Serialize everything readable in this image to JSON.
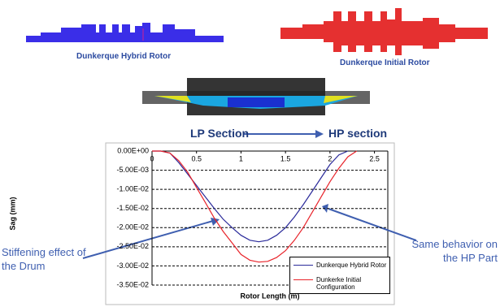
{
  "chart_data": {
    "type": "line",
    "x_label": "Rotor Length (m)",
    "y_label": "Sag (mm)",
    "x": [
      0,
      0.1,
      0.2,
      0.3,
      0.4,
      0.5,
      0.6,
      0.7,
      0.8,
      0.9,
      1.0,
      1.1,
      1.2,
      1.3,
      1.4,
      1.5,
      1.6,
      1.7,
      1.8,
      1.9,
      2.0,
      2.1,
      2.2,
      2.3
    ],
    "series": [
      {
        "name": "Dunkerque Hybrid Rotor",
        "color": "#2a2a9a",
        "values": [
          0,
          0,
          -0.0005,
          -0.003,
          -0.006,
          -0.009,
          -0.012,
          -0.015,
          -0.0178,
          -0.02,
          -0.022,
          -0.0233,
          -0.0237,
          -0.0233,
          -0.022,
          -0.02,
          -0.0172,
          -0.014,
          -0.0105,
          -0.007,
          -0.0035,
          -0.001,
          0,
          null
        ]
      },
      {
        "name": "Dunkerke Initial Configuration",
        "color": "#e8232a",
        "values": [
          0,
          0,
          -0.0005,
          -0.0025,
          -0.0055,
          -0.0095,
          -0.0135,
          -0.0175,
          -0.021,
          -0.024,
          -0.027,
          -0.0285,
          -0.029,
          -0.0288,
          -0.0278,
          -0.026,
          -0.0233,
          -0.02,
          -0.016,
          -0.012,
          -0.008,
          -0.0045,
          -0.0015,
          0
        ]
      }
    ],
    "xlim": [
      0,
      2.65
    ],
    "xticks": [
      0,
      0.5,
      1,
      1.5,
      2,
      2.5
    ],
    "ylim": [
      -0.035,
      0
    ],
    "yticks": [
      {
        "value": 0,
        "label": "0.00E+00"
      },
      {
        "value": -0.005,
        "label": "-5.00E-03"
      },
      {
        "value": -0.01,
        "label": "-1.00E-02"
      },
      {
        "value": -0.015,
        "label": "-1.50E-02"
      },
      {
        "value": -0.02,
        "label": "-2.00E-02"
      },
      {
        "value": -0.025,
        "label": "-2.50E-02"
      },
      {
        "value": -0.03,
        "label": "-3.00E-02"
      },
      {
        "value": -0.035,
        "label": "-3.50E-02"
      }
    ],
    "grid": true,
    "section_labels": [
      "LP Section",
      "HP section"
    ],
    "image_captions": [
      "Dunkerque Hybrid Rotor",
      "Dunkerque Initial Rotor"
    ],
    "annotations": [
      "Stiffening effect of the Drum",
      "Same behavior on the HP Part"
    ]
  }
}
